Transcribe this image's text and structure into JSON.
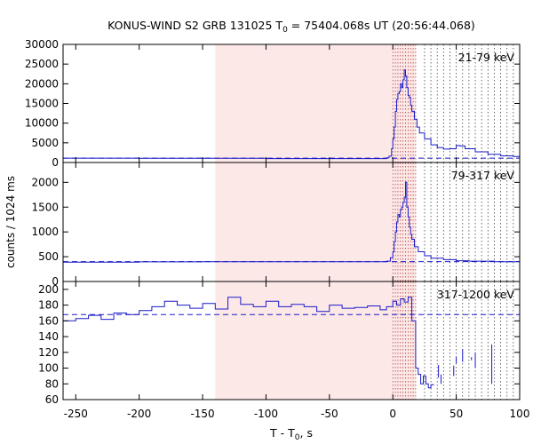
{
  "chart_data": {
    "type": "line",
    "title_main": "KONUS-WIND S2 GRB 131025 T",
    "title_sub": "0",
    "title_rest": " = 75404.068s UT (20:56:44.068)",
    "ylabel": "counts / 1024 ms",
    "xlabel_main": "T - T",
    "xlabel_sub": "0",
    "xlabel_rest": ", s",
    "xlim": [
      -260,
      100
    ],
    "x_ticks": [
      -250,
      -200,
      -150,
      -100,
      -50,
      0,
      50,
      100
    ],
    "x_tick_labels": [
      "-250",
      "-200",
      "-150",
      "-100",
      "-50",
      "0",
      "50",
      "100"
    ],
    "shaded_intervals": [
      [
        -140,
        0
      ],
      [
        0,
        18
      ]
    ],
    "vertical_markers": [
      0,
      2,
      4,
      6,
      8,
      10,
      12,
      14,
      16,
      18,
      25,
      30,
      35,
      40,
      45,
      50,
      55,
      60,
      65,
      70,
      75,
      80,
      85,
      90,
      95
    ],
    "series_color": "#1a1ac8",
    "shade_color": "#fde8e8",
    "panels": [
      {
        "label": "21-79 keV",
        "ylim": [
          0,
          30000
        ],
        "y_ticks": [
          0,
          5000,
          10000,
          15000,
          20000,
          25000,
          30000
        ],
        "y_tick_labels": [
          "0",
          "5000",
          "10000",
          "15000",
          "20000",
          "25000",
          "30000"
        ],
        "background": 1100,
        "points": [
          [
            -260,
            1100
          ],
          [
            -200,
            1080
          ],
          [
            -150,
            1050
          ],
          [
            -100,
            1000
          ],
          [
            -50,
            1000
          ],
          [
            -10,
            1000
          ],
          [
            -5,
            1200
          ],
          [
            -3,
            1600
          ],
          [
            -1,
            3500
          ],
          [
            0,
            6000
          ],
          [
            1,
            9000
          ],
          [
            2,
            13000
          ],
          [
            3,
            16000
          ],
          [
            4,
            17500
          ],
          [
            5,
            18000
          ],
          [
            6,
            20000
          ],
          [
            7,
            19000
          ],
          [
            8,
            21000
          ],
          [
            9,
            23500
          ],
          [
            10,
            22000
          ],
          [
            11,
            19000
          ],
          [
            12,
            17000
          ],
          [
            13,
            16500
          ],
          [
            14,
            14500
          ],
          [
            15,
            13000
          ],
          [
            17,
            11000
          ],
          [
            19,
            9000
          ],
          [
            21,
            7500
          ],
          [
            25,
            6000
          ],
          [
            30,
            4500
          ],
          [
            35,
            3800
          ],
          [
            40,
            3400
          ],
          [
            45,
            3500
          ],
          [
            50,
            4300
          ],
          [
            53,
            4200
          ],
          [
            57,
            3500
          ],
          [
            65,
            2700
          ],
          [
            75,
            2100
          ],
          [
            85,
            1700
          ],
          [
            95,
            1500
          ],
          [
            100,
            1400
          ]
        ]
      },
      {
        "label": "79-317 keV",
        "ylim": [
          0,
          2400
        ],
        "y_ticks": [
          0,
          500,
          1000,
          1500,
          2000
        ],
        "y_tick_labels": [
          "0",
          "500",
          "1000",
          "1500",
          "2000"
        ],
        "background": 400,
        "points": [
          [
            -260,
            390
          ],
          [
            -200,
            395
          ],
          [
            -150,
            400
          ],
          [
            -100,
            400
          ],
          [
            -50,
            400
          ],
          [
            -5,
            410
          ],
          [
            -2,
            480
          ],
          [
            0,
            600
          ],
          [
            1,
            800
          ],
          [
            2,
            1000
          ],
          [
            3,
            1200
          ],
          [
            4,
            1350
          ],
          [
            5,
            1300
          ],
          [
            6,
            1450
          ],
          [
            7,
            1500
          ],
          [
            8,
            1600
          ],
          [
            9,
            1700
          ],
          [
            10,
            2000
          ],
          [
            11,
            1500
          ],
          [
            12,
            1300
          ],
          [
            13,
            1100
          ],
          [
            14,
            950
          ],
          [
            15,
            850
          ],
          [
            17,
            700
          ],
          [
            20,
            600
          ],
          [
            25,
            520
          ],
          [
            30,
            470
          ],
          [
            40,
            440
          ],
          [
            50,
            420
          ],
          [
            60,
            410
          ],
          [
            80,
            400
          ],
          [
            100,
            400
          ]
        ]
      },
      {
        "label": "317-1200 keV",
        "ylim": [
          60,
          210
        ],
        "y_ticks": [
          60,
          80,
          100,
          120,
          140,
          160,
          180,
          200
        ],
        "y_tick_labels": [
          "60",
          "80",
          "100",
          "120",
          "140",
          "160",
          "180",
          "200"
        ],
        "background": 168,
        "points": [
          [
            -260,
            160
          ],
          [
            -250,
            163
          ],
          [
            -240,
            167
          ],
          [
            -230,
            162
          ],
          [
            -220,
            170
          ],
          [
            -210,
            168
          ],
          [
            -200,
            173
          ],
          [
            -190,
            178
          ],
          [
            -180,
            185
          ],
          [
            -170,
            180
          ],
          [
            -160,
            176
          ],
          [
            -150,
            182
          ],
          [
            -140,
            175
          ],
          [
            -130,
            190
          ],
          [
            -120,
            181
          ],
          [
            -110,
            178
          ],
          [
            -100,
            185
          ],
          [
            -90,
            178
          ],
          [
            -80,
            181
          ],
          [
            -70,
            178
          ],
          [
            -60,
            172
          ],
          [
            -50,
            180
          ],
          [
            -40,
            176
          ],
          [
            -30,
            177
          ],
          [
            -20,
            179
          ],
          [
            -10,
            174
          ],
          [
            -5,
            178
          ],
          [
            0,
            185
          ],
          [
            3,
            180
          ],
          [
            6,
            188
          ],
          [
            9,
            184
          ],
          [
            12,
            190
          ],
          [
            15,
            160
          ],
          [
            18,
            100
          ],
          [
            20,
            92
          ],
          [
            22,
            80
          ],
          [
            24,
            90
          ],
          [
            26,
            80
          ],
          [
            28,
            75
          ],
          [
            30,
            79
          ],
          [
            32,
            78
          ]
        ],
        "sparse_segments": [
          [
            [
              36,
              88
            ],
            [
              36,
              104
            ]
          ],
          [
            [
              38,
              80
            ],
            [
              38,
              92
            ]
          ],
          [
            [
              48,
              90
            ],
            [
              48,
              103
            ]
          ],
          [
            [
              50,
              106
            ],
            [
              50,
              114
            ]
          ],
          [
            [
              55,
              108
            ],
            [
              55,
              124
            ]
          ],
          [
            [
              62,
              110
            ],
            [
              62,
              114
            ]
          ],
          [
            [
              65,
              100
            ],
            [
              65,
              120
            ]
          ],
          [
            [
              78,
              80
            ],
            [
              78,
              130
            ]
          ]
        ]
      }
    ]
  }
}
